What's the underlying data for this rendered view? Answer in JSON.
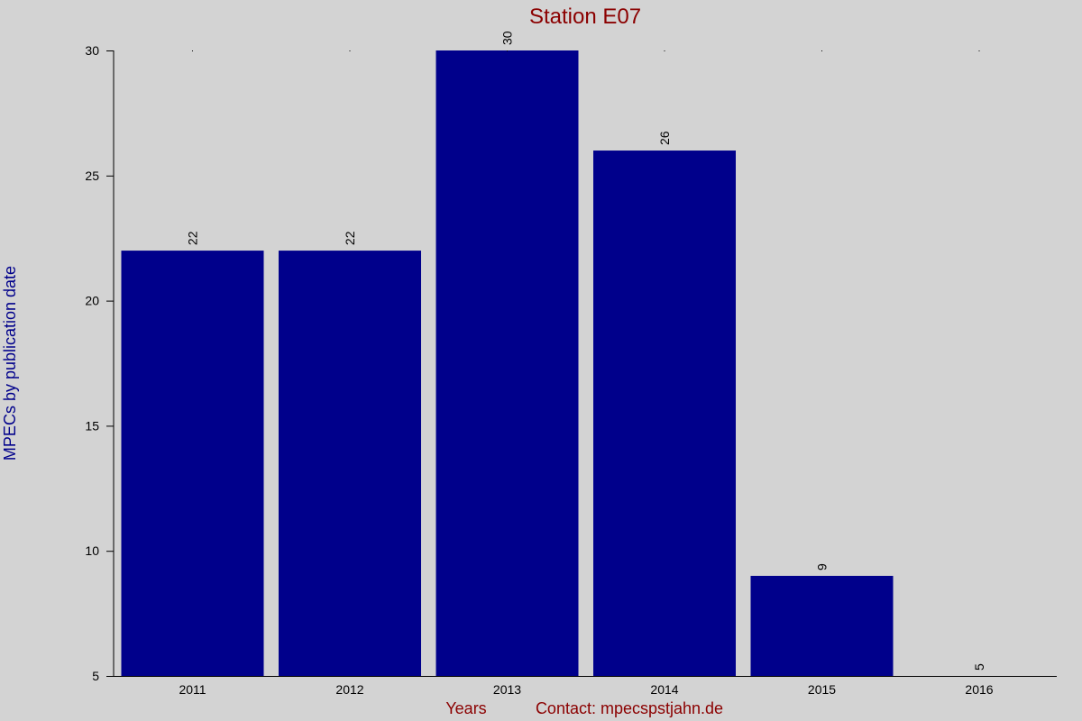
{
  "chart_data": {
    "type": "bar",
    "title": "Station E07",
    "xlabel": "Years",
    "ylabel": "MPECs by publication date",
    "footer_contact": "Contact: mpecspstjahn.de",
    "categories": [
      "2011",
      "2012",
      "2013",
      "2014",
      "2015",
      "2016"
    ],
    "values": [
      22,
      22,
      30,
      26,
      9,
      5
    ],
    "ylim": [
      5,
      30
    ],
    "yticks": [
      5,
      10,
      15,
      20,
      25,
      30
    ],
    "bar_color": "#00008b",
    "title_color": "#8b0000",
    "ylabel_color": "#00008b",
    "xlabel_color": "#8b0000",
    "background_color": "#d3d3d3",
    "grid": false,
    "legend": "none"
  }
}
